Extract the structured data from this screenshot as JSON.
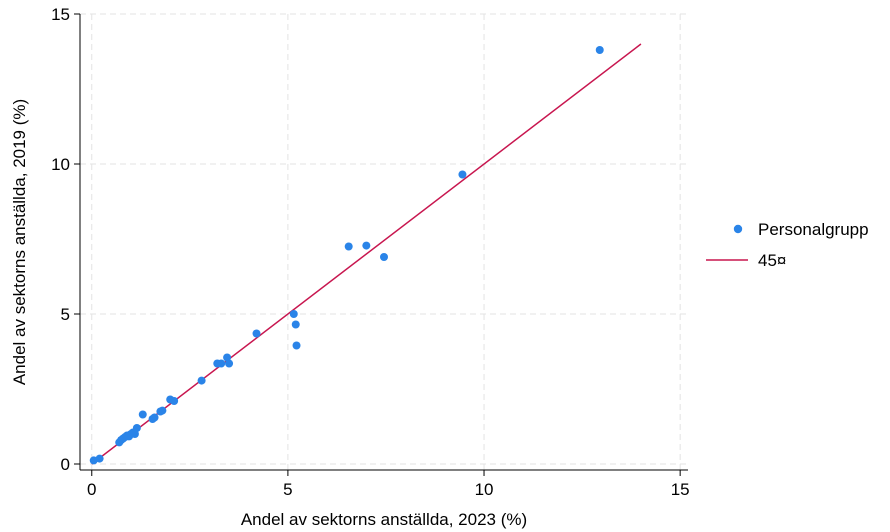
{
  "chart_data": {
    "type": "scatter",
    "xlabel": "Andel av sektorns anställda, 2023 (%)",
    "ylabel": "Andel av sektorns anställda, 2019 (%)",
    "xlim": [
      -0.3,
      15.2
    ],
    "ylim": [
      -0.2,
      15.0
    ],
    "xticks": [
      0,
      5,
      10,
      15
    ],
    "yticks": [
      0,
      5,
      10,
      15
    ],
    "xtick_labels": [
      "0",
      "5",
      "10",
      "15"
    ],
    "ytick_labels": [
      "0",
      "5",
      "10",
      "15"
    ],
    "grid": true,
    "legend_position": "right",
    "colors": {
      "points": "#2a84e8",
      "line": "#c8164f",
      "grid": "#e3e3e3"
    },
    "series": [
      {
        "name": "Personalgrupp",
        "kind": "scatter",
        "x": [
          0.05,
          0.2,
          0.7,
          0.75,
          0.8,
          0.85,
          0.9,
          0.95,
          1.0,
          1.05,
          1.1,
          1.15,
          1.3,
          1.55,
          1.6,
          1.75,
          1.8,
          2.0,
          2.1,
          2.8,
          3.2,
          3.3,
          3.45,
          3.5,
          4.2,
          5.15,
          5.2,
          5.22,
          6.55,
          7.0,
          7.45,
          9.45,
          12.95
        ],
        "y": [
          0.12,
          0.18,
          0.72,
          0.8,
          0.85,
          0.9,
          0.95,
          0.92,
          1.0,
          1.05,
          1.0,
          1.2,
          1.65,
          1.5,
          1.55,
          1.75,
          1.78,
          2.15,
          2.1,
          2.78,
          3.35,
          3.35,
          3.55,
          3.35,
          4.35,
          5.0,
          4.65,
          3.95,
          7.25,
          7.28,
          6.9,
          9.65,
          13.8
        ]
      },
      {
        "name": "45¤",
        "kind": "line",
        "x": [
          0,
          14
        ],
        "y": [
          0,
          14
        ]
      }
    ]
  }
}
